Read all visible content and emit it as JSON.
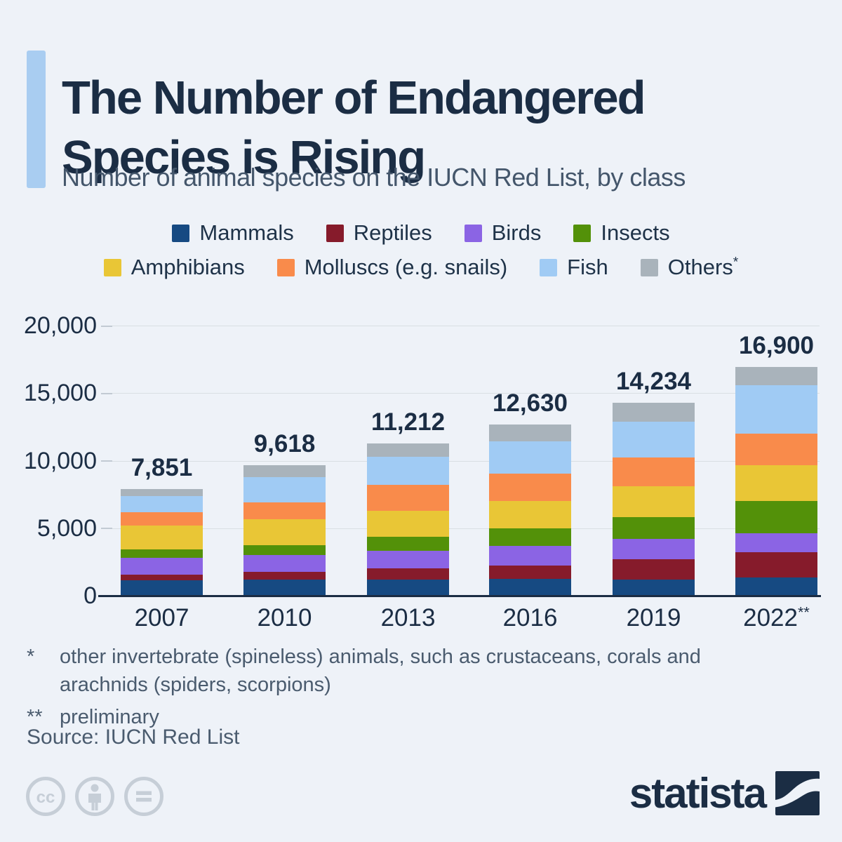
{
  "header": {
    "title": "The Number of Endangered Species is Rising",
    "subtitle": "Number of animal species on the IUCN Red List, by class"
  },
  "chart_data": {
    "type": "stacked-bar",
    "title": "The Number of Endangered Species is Rising",
    "subtitle": "Number of animal species on the IUCN Red List, by class",
    "categories": [
      "2007",
      "2010",
      "2013",
      "2016",
      "2019",
      "2022**"
    ],
    "totals": [
      7851,
      9618,
      11212,
      12630,
      14234,
      16900
    ],
    "total_labels": [
      "7,851",
      "9,618",
      "11,212",
      "12,630",
      "14,234",
      "16,900"
    ],
    "series": [
      {
        "name": "Mammals",
        "color": "#164a82",
        "values": [
          1094,
          1131,
          1143,
          1204,
          1168,
          1309
        ]
      },
      {
        "name": "Reptiles",
        "color": "#861b2b",
        "values": [
          422,
          594,
          847,
          989,
          1498,
          1868
        ]
      },
      {
        "name": "Birds",
        "color": "#8b64e4",
        "values": [
          1217,
          1240,
          1308,
          1460,
          1496,
          1397
        ]
      },
      {
        "name": "Insects",
        "color": "#539109",
        "values": [
          623,
          733,
          993,
          1268,
          1601,
          2409
        ]
      },
      {
        "name": "Amphibians",
        "color": "#e9c636",
        "values": [
          1808,
          1898,
          1957,
          2067,
          2300,
          2654
        ]
      },
      {
        "name": "Molluscs (e.g. snails)",
        "color": "#f98b4b",
        "values": [
          978,
          1288,
          1898,
          1984,
          2126,
          2322
        ]
      },
      {
        "name": "Fish",
        "color": "#a0cbf4",
        "values": [
          1201,
          1851,
          2110,
          2386,
          2648,
          3579
        ]
      },
      {
        "name": "Others*",
        "color": "#a9b3bb",
        "values": [
          508,
          883,
          956,
          1272,
          1397,
          1362
        ]
      }
    ],
    "legend_rows": [
      [
        0,
        1,
        2,
        3
      ],
      [
        4,
        5,
        6,
        7
      ]
    ],
    "y_ticks": [
      {
        "label": "20,000",
        "value": 20000
      },
      {
        "label": "15,000",
        "value": 15000
      },
      {
        "label": "10,000",
        "value": 10000
      },
      {
        "label": "5,000",
        "value": 5000
      },
      {
        "label": "0",
        "value": 0
      }
    ],
    "ylim": [
      0,
      20000
    ],
    "grid": "horizontal gridlines at every 5,000",
    "legend_position": "top"
  },
  "footnotes": {
    "star_marker": "*",
    "star_text": "other invertebrate (spineless) animals, such as crustaceans, corals and arachnids (spiders, scorpions)",
    "prelim_marker": "**",
    "prelim_text": "preliminary",
    "source": "Source: IUCN Red List"
  },
  "footer": {
    "logo_text": "statista",
    "license_icons": [
      "cc-icon",
      "attribution-person-icon",
      "equals-icon"
    ]
  },
  "colors": {
    "background": "#eef2f8",
    "accent_bar": "#a9cdf1",
    "title_text": "#1b2d44",
    "subtitle_text": "#44566b",
    "axis_line": "#1b2d44",
    "gridline": "#d9dfe3",
    "footnote_text": "#4a5b6e",
    "license_icon_gray": "#c6ced7",
    "logo_navy": "#1b2d44"
  }
}
